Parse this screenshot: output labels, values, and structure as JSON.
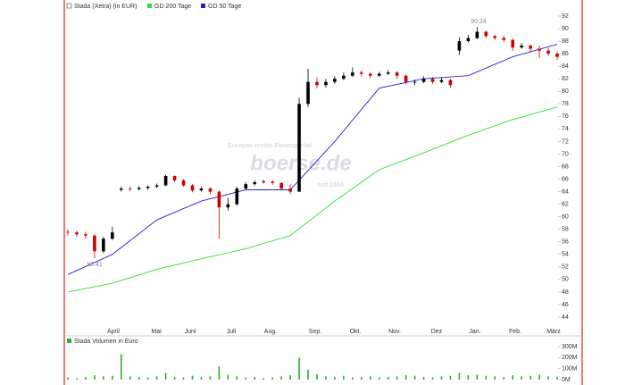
{
  "chart_data": {
    "type": "candlestick",
    "series_name": "Stada (Xetra) (in EUR)",
    "up_color": "#000000",
    "down_color": "#cc0000",
    "candles": [
      [
        57.6,
        58.0,
        57.0,
        57.5
      ],
      [
        57.5,
        57.8,
        56.8,
        57.2
      ],
      [
        57.2,
        57.6,
        56.5,
        57.0
      ],
      [
        57.0,
        57.2,
        53.41,
        54.5
      ],
      [
        54.5,
        56.8,
        54.2,
        56.5
      ],
      [
        56.5,
        58.4,
        56.3,
        57.5
      ],
      [
        64.3,
        64.8,
        64.0,
        64.5
      ],
      [
        64.5,
        64.8,
        64.1,
        64.4
      ],
      [
        64.4,
        64.9,
        64.2,
        64.6
      ],
      [
        64.6,
        65.0,
        64.3,
        64.8
      ],
      [
        64.8,
        65.3,
        64.6,
        65.0
      ],
      [
        65.0,
        66.7,
        64.9,
        66.5
      ],
      [
        66.5,
        66.6,
        65.5,
        65.8
      ],
      [
        65.8,
        66.0,
        64.8,
        65.0
      ],
      [
        65.0,
        65.2,
        63.9,
        64.2
      ],
      [
        64.2,
        64.8,
        64.0,
        64.5
      ],
      [
        64.5,
        64.7,
        63.6,
        64.0
      ],
      [
        64.0,
        64.2,
        56.5,
        61.5
      ],
      [
        61.5,
        63.0,
        61.0,
        62.0
      ],
      [
        62.0,
        64.8,
        61.8,
        64.5
      ],
      [
        64.5,
        65.5,
        64.3,
        65.2
      ],
      [
        65.2,
        65.8,
        65.0,
        65.5
      ],
      [
        65.5,
        65.9,
        65.3,
        65.6
      ],
      [
        65.6,
        65.8,
        65.1,
        65.4
      ],
      [
        65.4,
        65.5,
        64.2,
        64.5
      ],
      [
        64.5,
        65.2,
        63.6,
        64.0
      ],
      [
        64.0,
        79.0,
        64.0,
        78.0
      ],
      [
        78.0,
        83.6,
        77.5,
        81.5
      ],
      [
        81.5,
        82.2,
        80.5,
        81.0
      ],
      [
        81.0,
        82.0,
        80.6,
        81.5
      ],
      [
        81.5,
        82.4,
        81.2,
        82.0
      ],
      [
        82.0,
        83.0,
        81.8,
        82.5
      ],
      [
        82.5,
        83.8,
        82.3,
        83.0
      ],
      [
        83.0,
        83.3,
        82.4,
        82.8
      ],
      [
        82.8,
        83.0,
        82.1,
        82.5
      ],
      [
        82.5,
        83.1,
        82.3,
        82.8
      ],
      [
        82.8,
        83.4,
        82.6,
        83.0
      ],
      [
        83.0,
        83.2,
        82.0,
        82.5
      ],
      [
        82.5,
        82.7,
        81.1,
        81.5
      ],
      [
        81.5,
        81.9,
        81.0,
        81.5
      ],
      [
        81.5,
        82.4,
        81.3,
        82.0
      ],
      [
        82.0,
        82.3,
        81.2,
        81.5
      ],
      [
        81.5,
        82.2,
        81.3,
        81.8
      ],
      [
        81.8,
        82.0,
        80.6,
        81.0
      ],
      [
        86.5,
        88.6,
        85.8,
        88.0
      ],
      [
        88.0,
        89.0,
        87.8,
        88.5
      ],
      [
        88.5,
        90.24,
        88.3,
        89.5
      ],
      [
        89.5,
        89.7,
        88.5,
        88.8
      ],
      [
        88.8,
        89.0,
        88.2,
        88.5
      ],
      [
        88.5,
        88.9,
        87.9,
        88.2
      ],
      [
        88.2,
        88.4,
        86.5,
        87.0
      ],
      [
        87.0,
        87.7,
        86.8,
        87.3
      ],
      [
        87.3,
        87.5,
        86.2,
        86.8
      ],
      [
        86.8,
        87.3,
        85.3,
        86.5
      ],
      [
        86.5,
        86.9,
        85.6,
        86.0
      ],
      [
        86.0,
        86.4,
        85.0,
        85.5
      ]
    ],
    "ma": [
      {
        "name": "GD 200 Tage",
        "color": "#33dd33",
        "values": [
          48,
          49.4,
          51.6,
          53.3,
          54.9,
          57.0,
          62.5,
          67.5,
          70.2,
          73,
          75.5,
          77.5
        ]
      },
      {
        "name": "GD 50 Tage",
        "color": "#2222cc",
        "values": [
          50.8,
          54,
          59.5,
          62.5,
          64.3,
          64.3,
          72,
          80.5,
          82,
          82.5,
          85.5,
          87.5
        ]
      }
    ],
    "categories": [
      "April",
      "Mai",
      "Juni",
      "Juli",
      "Aug.",
      "Sep.",
      "Okt.",
      "Nov.",
      "Dez",
      "Jan.",
      "Feb.",
      "März"
    ],
    "ylim": [
      44,
      92
    ],
    "yticks": [
      44,
      46,
      48,
      50,
      52,
      54,
      56,
      58,
      60,
      62,
      64,
      66,
      68,
      70,
      72,
      74,
      76,
      78,
      80,
      82,
      84,
      86,
      88,
      90,
      92
    ],
    "annotations": [
      {
        "label": "90.24",
        "value": 90.24
      },
      {
        "label": "53.41",
        "value": 53.41
      }
    ],
    "watermark": {
      "line1": "Europas erstes Finanzportal",
      "logo": "boerse.de",
      "line2": "seit 1994"
    },
    "volume": {
      "title": "Stada Volumen in Euro",
      "color": "#33aa33",
      "values": [
        20,
        15,
        25,
        40,
        30,
        35,
        230,
        30,
        25,
        20,
        30,
        60,
        25,
        20,
        35,
        25,
        30,
        120,
        45,
        30,
        20,
        25,
        15,
        20,
        30,
        40,
        200,
        90,
        50,
        30,
        25,
        35,
        20,
        25,
        30,
        20,
        25,
        30,
        40,
        35,
        25,
        20,
        30,
        35,
        60,
        40,
        45,
        35,
        30,
        25,
        40,
        30,
        35,
        45,
        30,
        25
      ],
      "ylim": [
        0,
        300
      ],
      "yticks": [
        {
          "value": 0,
          "label": "0M"
        },
        {
          "value": 100,
          "label": "100M"
        },
        {
          "value": 200,
          "label": "200M"
        },
        {
          "value": 300,
          "label": "300M"
        }
      ]
    }
  }
}
